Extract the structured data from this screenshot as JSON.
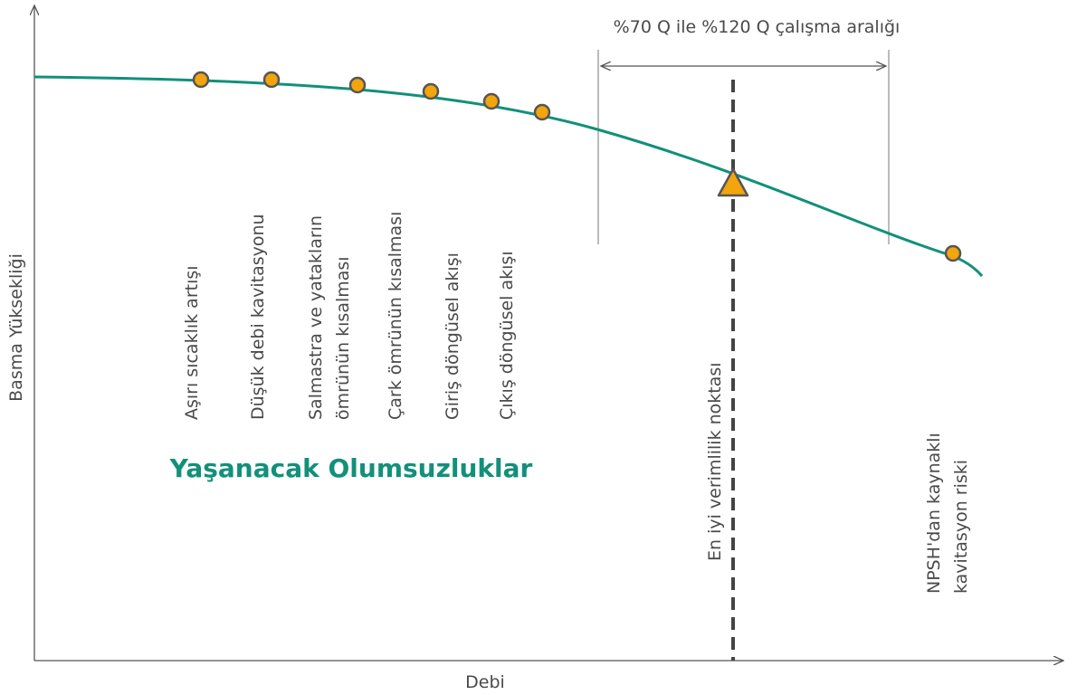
{
  "axes": {
    "y_label": "Basma Yüksekliği",
    "x_label": "Debi"
  },
  "range_label": "%70 Q ile %120 Q çalışma aralığı",
  "heading": "Yaşanacak Olumsuzluklar",
  "annotations": [
    {
      "lines": [
        "Aşırı sıcaklık artışı"
      ]
    },
    {
      "lines": [
        "Düşük debi kavitasyonu"
      ]
    },
    {
      "lines": [
        "Salmastra ve yatakların",
        "ömrünün kısalması"
      ]
    },
    {
      "lines": [
        "Çark ömrünün kısalması"
      ]
    },
    {
      "lines": [
        "Giriş döngüsel akışı"
      ]
    },
    {
      "lines": [
        "Çıkış döngüsel akışı"
      ]
    },
    {
      "lines": [
        "En iyi verimlilik noktası"
      ]
    },
    {
      "lines": [
        "NPSH'dan kaynaklı",
        "kavitasyon riski"
      ]
    }
  ]
}
